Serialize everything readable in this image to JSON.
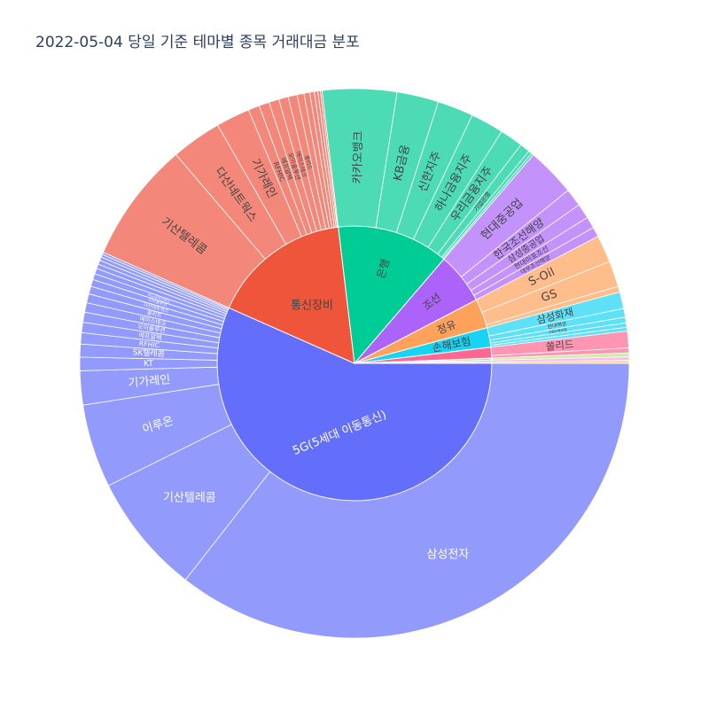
{
  "chart_data": {
    "type": "sunburst",
    "title": "2022-05-04 당일 기준 테마별 종목 거래대금 분포",
    "themes": [
      {
        "name": "5G(5세대 이동통신)",
        "color": "#636efa",
        "child_color": "#929bfb",
        "label_color": "#ffffff",
        "children": [
          {
            "name": "삼성전자",
            "value": 2100
          },
          {
            "name": "기산텔레콤",
            "value": 420
          },
          {
            "name": "이루온",
            "value": 290
          },
          {
            "name": "기가레인",
            "value": 118
          },
          {
            "name": "KT",
            "value": 47
          },
          {
            "name": "SK텔레콤",
            "value": 45
          },
          {
            "name": "RFHIC",
            "value": 39
          },
          {
            "name": "에프알텍",
            "value": 36
          },
          {
            "name": "오이솔루션",
            "value": 35
          },
          {
            "name": "에이스테크",
            "value": 33
          },
          {
            "name": "쏠리드",
            "value": 31
          },
          {
            "name": "다산네트웍스",
            "value": 27
          },
          {
            "name": "오이솔루션",
            "value": 24
          },
          {
            "name": "이노와이어리스",
            "value": 21
          },
          {
            "name": "",
            "value": 19
          },
          {
            "name": "",
            "value": 16
          },
          {
            "name": "",
            "value": 14
          },
          {
            "name": "",
            "value": 12
          },
          {
            "name": "",
            "value": 10
          },
          {
            "name": "",
            "value": 8
          }
        ]
      },
      {
        "name": "통신장비",
        "color": "#ef553b",
        "child_color": "#f3887a",
        "label_color": "#444444",
        "children": [
          {
            "name": "기산텔레콤",
            "value": 420
          },
          {
            "name": "다산네트웍스",
            "value": 175
          },
          {
            "name": "기가레인",
            "value": 118
          },
          {
            "name": "RFHIC",
            "value": 39
          },
          {
            "name": "에프알텍",
            "value": 36
          },
          {
            "name": "오이솔루션",
            "value": 35
          },
          {
            "name": "에이스테크",
            "value": 33
          },
          {
            "name": "쏠리드",
            "value": 31
          },
          {
            "name": "",
            "value": 24
          },
          {
            "name": "",
            "value": 20
          },
          {
            "name": "",
            "value": 16
          },
          {
            "name": "",
            "value": 12
          },
          {
            "name": "",
            "value": 9
          },
          {
            "name": "",
            "value": 6
          }
        ]
      },
      {
        "name": "은행",
        "color": "#00cc96",
        "child_color": "#4ddbb6",
        "label_color": "#444444",
        "children": [
          {
            "name": "카카오뱅크",
            "value": 258
          },
          {
            "name": "KB금융",
            "value": 145
          },
          {
            "name": "신한지주",
            "value": 125
          },
          {
            "name": "하나금융지주",
            "value": 115
          },
          {
            "name": "우리금융지주",
            "value": 80
          },
          {
            "name": "기업은행",
            "value": 35
          },
          {
            "name": "",
            "value": 12
          },
          {
            "name": "",
            "value": 8
          }
        ]
      },
      {
        "name": "조선",
        "color": "#ab63fa",
        "child_color": "#c492fb",
        "label_color": "#444444",
        "children": [
          {
            "name": "현대중공업",
            "value": 170
          },
          {
            "name": "한국조선해양",
            "value": 62
          },
          {
            "name": "삼성중공업",
            "value": 52
          },
          {
            "name": "현대미포조선",
            "value": 40
          },
          {
            "name": "대우조선해양",
            "value": 34
          }
        ]
      },
      {
        "name": "정유",
        "color": "#ffa15a",
        "child_color": "#ffbd8c",
        "label_color": "#444444",
        "children": [
          {
            "name": "S-Oil",
            "value": 95
          },
          {
            "name": "GS",
            "value": 90
          },
          {
            "name": "",
            "value": 20
          }
        ]
      },
      {
        "name": "손해보험",
        "color": "#19d3f3",
        "child_color": "#5ee0f7",
        "label_color": "#444444",
        "children": [
          {
            "name": "삼성화재",
            "value": 58
          },
          {
            "name": "현대해상",
            "value": 30
          },
          {
            "name": "DB손해보험",
            "value": 20
          },
          {
            "name": "",
            "value": 15
          },
          {
            "name": "",
            "value": 13
          }
        ]
      },
      {
        "name": "",
        "color": "#ff6692",
        "child_color": "#ff94b3",
        "label_color": "#444444",
        "children": [
          {
            "name": "쏠리드",
            "value": 58
          },
          {
            "name": "",
            "value": 17
          }
        ]
      },
      {
        "name": "",
        "color": "#b6e880",
        "child_color": "#ccefa6",
        "label_color": "#444444",
        "children": [
          {
            "name": "",
            "value": 14
          }
        ]
      },
      {
        "name": "",
        "color": "#ff97ff",
        "child_color": "#ffb6ff",
        "label_color": "#444444",
        "children": [
          {
            "name": "",
            "value": 12
          }
        ]
      },
      {
        "name": "",
        "color": "#fecb52",
        "child_color": "#fedb86",
        "label_color": "#444444",
        "children": [
          {
            "name": "",
            "value": 10
          }
        ]
      }
    ]
  }
}
